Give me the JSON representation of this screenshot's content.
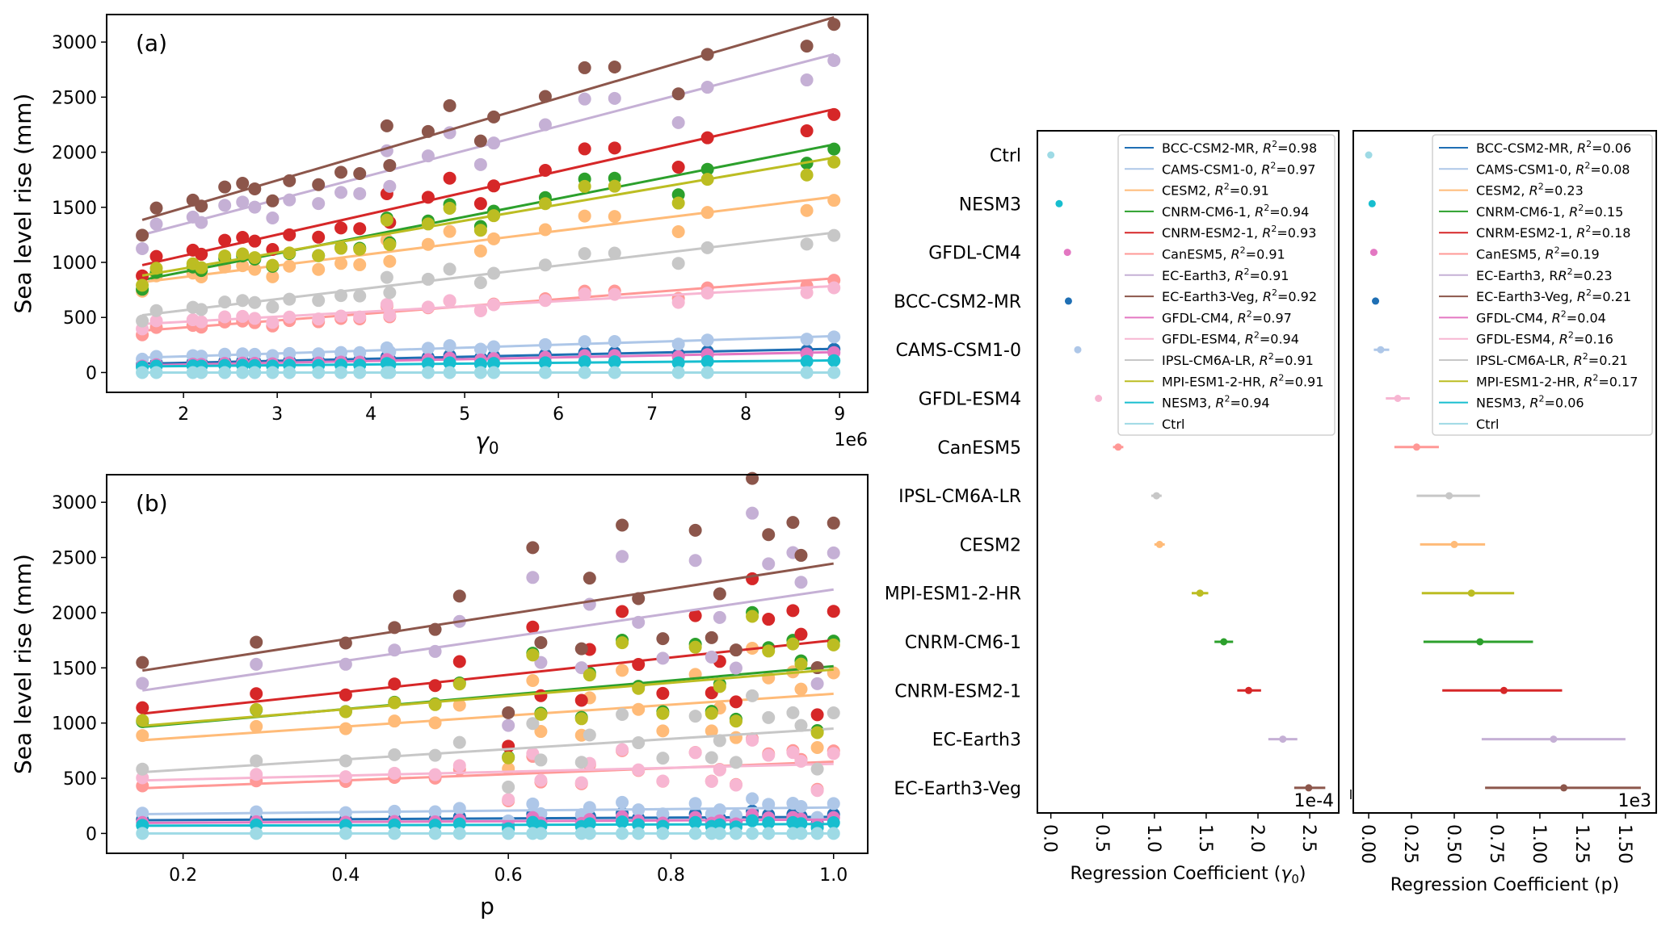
{
  "chart_data": [
    {
      "id": "a",
      "type": "scatter",
      "panel_label": "(a)",
      "xlabel": "γ0",
      "ylabel": "Sea level rise (mm)",
      "x_offset_text": "1e6",
      "xlim": [
        1.18,
        9.3
      ],
      "ylim": [
        -180,
        3250
      ],
      "xticks": [
        2,
        3,
        4,
        5,
        6,
        7,
        8,
        9
      ],
      "yticks": [
        0,
        500,
        1000,
        1500,
        2000,
        2500,
        3000
      ],
      "x": [
        1.56,
        1.71,
        2.1,
        2.19,
        2.44,
        2.63,
        2.76,
        2.95,
        3.13,
        3.44,
        3.68,
        3.88,
        4.17,
        4.2,
        4.61,
        4.84,
        5.17,
        5.31,
        5.86,
        6.28,
        6.6,
        7.28,
        7.59,
        8.65,
        8.94
      ],
      "relative_residual": [
        0.9,
        1.05,
        1.03,
        0.98,
        1.05,
        1.04,
        0.99,
        0.9,
        0.98,
        0.92,
        0.95,
        0.92,
        1.1,
        0.92,
        1.02,
        1.1,
        0.92,
        1.0,
        1.02,
        1.08,
        1.05,
        0.9,
        1.0,
        0.94,
        0.98
      ],
      "series": [
        {
          "name": "BCC-CSM2-MR",
          "color": "#1f6fb4",
          "fit": [
            80,
            215
          ]
        },
        {
          "name": "CAMS-CSM1-0",
          "color": "#aec7e8",
          "fit": [
            135,
            330
          ]
        },
        {
          "name": "CESM2",
          "color": "#ffbb78",
          "fit": [
            820,
            1595
          ]
        },
        {
          "name": "CNRM-CM6-1",
          "color": "#2ca02c",
          "fit": [
            840,
            2070
          ]
        },
        {
          "name": "CNRM-ESM2-1",
          "color": "#d62728",
          "fit": [
            975,
            2390
          ]
        },
        {
          "name": "CanESM5",
          "color": "#ff9896",
          "fit": [
            380,
            855
          ]
        },
        {
          "name": "EC-Earth3",
          "color": "#c5b0d5",
          "fit": [
            1250,
            2890
          ]
        },
        {
          "name": "EC-Earth3-Veg",
          "color": "#8c564b",
          "fit": [
            1385,
            3225
          ]
        },
        {
          "name": "GFDL-CM4",
          "color": "#e377c2",
          "fit": [
            65,
            185
          ]
        },
        {
          "name": "GFDL-ESM4",
          "color": "#f7b6d2",
          "fit": [
            440,
            785
          ]
        },
        {
          "name": "IPSL-CM6A-LR",
          "color": "#c7c7c7",
          "fit": [
            520,
            1270
          ]
        },
        {
          "name": "MPI-ESM1-2-HR",
          "color": "#bcbd22",
          "fit": [
            880,
            1950
          ]
        },
        {
          "name": "NESM3",
          "color": "#17becf",
          "fit": [
            55,
            110
          ]
        },
        {
          "name": "Ctrl",
          "color": "#9edae5",
          "fit": [
            0,
            0
          ]
        }
      ]
    },
    {
      "id": "b",
      "type": "scatter",
      "panel_label": "(b)",
      "xlabel": "p",
      "ylabel": "Sea level rise (mm)",
      "xlim": [
        0.106,
        1.042
      ],
      "ylim": [
        -180,
        3250
      ],
      "xticks": [
        0.2,
        0.4,
        0.6,
        0.8,
        1.0
      ],
      "yticks": [
        0,
        500,
        1000,
        1500,
        2000,
        2500,
        3000
      ],
      "x": [
        0.15,
        0.29,
        0.4,
        0.46,
        0.51,
        0.54,
        0.6,
        0.63,
        0.64,
        0.69,
        0.7,
        0.74,
        0.76,
        0.79,
        0.83,
        0.85,
        0.86,
        0.88,
        0.9,
        0.92,
        0.95,
        0.96,
        0.98,
        1.0
      ],
      "relative_residual": [
        1.05,
        1.06,
        0.98,
        1.02,
        0.98,
        1.12,
        0.55,
        1.28,
        0.85,
        0.8,
        1.1,
        1.3,
        0.98,
        0.8,
        1.22,
        0.78,
        0.95,
        0.72,
        1.38,
        1.15,
        1.18,
        1.05,
        0.62,
        1.15
      ],
      "series": [
        {
          "name": "BCC-CSM2-MR",
          "color": "#1f6fb4",
          "fit": [
            120,
            150
          ]
        },
        {
          "name": "CAMS-CSM1-0",
          "color": "#aec7e8",
          "fit": [
            175,
            235
          ]
        },
        {
          "name": "CESM2",
          "color": "#ffbb78",
          "fit": [
            845,
            1265
          ]
        },
        {
          "name": "CNRM-CM6-1",
          "color": "#2ca02c",
          "fit": [
            965,
            1515
          ]
        },
        {
          "name": "CNRM-ESM2-1",
          "color": "#d62728",
          "fit": [
            1085,
            1750
          ]
        },
        {
          "name": "CanESM5",
          "color": "#ff9896",
          "fit": [
            410,
            650
          ]
        },
        {
          "name": "EC-Earth3",
          "color": "#c5b0d5",
          "fit": [
            1295,
            2210
          ]
        },
        {
          "name": "EC-Earth3-Veg",
          "color": "#8c564b",
          "fit": [
            1475,
            2445
          ]
        },
        {
          "name": "GFDL-CM4",
          "color": "#e377c2",
          "fit": [
            95,
            125
          ]
        },
        {
          "name": "GFDL-ESM4",
          "color": "#f7b6d2",
          "fit": [
            480,
            630
          ]
        },
        {
          "name": "IPSL-CM6A-LR",
          "color": "#c7c7c7",
          "fit": [
            555,
            950
          ]
        },
        {
          "name": "MPI-ESM1-2-HR",
          "color": "#bcbd22",
          "fit": [
            975,
            1485
          ]
        },
        {
          "name": "NESM3",
          "color": "#17becf",
          "fit": [
            70,
            85
          ]
        },
        {
          "name": "Ctrl",
          "color": "#9edae5",
          "fit": [
            0,
            0
          ]
        }
      ]
    },
    {
      "id": "c",
      "type": "errorbar",
      "xlabel": "Regression Coefficient (γ0)",
      "x_offset_text": "1e-4",
      "xlim": [
        -0.13,
        2.78
      ],
      "xticks": [
        "0.0",
        "0.5",
        "1.0",
        "1.5",
        "2.0",
        "2.5"
      ],
      "categories": [
        "Ctrl",
        "NESM3",
        "GFDL-CM4",
        "BCC-CSM2-MR",
        "CAMS-CSM1-0",
        "GFDL-ESM4",
        "CanESM5",
        "IPSL-CM6A-LR",
        "CESM2",
        "MPI-ESM1-2-HR",
        "CNRM-CM6-1",
        "CNRM-ESM2-1",
        "EC-Earth3",
        "EC-Earth3-Veg"
      ],
      "colors": [
        "#9edae5",
        "#17becf",
        "#e377c2",
        "#1f6fb4",
        "#aec7e8",
        "#f7b6d2",
        "#ff9896",
        "#c7c7c7",
        "#ffbb78",
        "#bcbd22",
        "#2ca02c",
        "#d62728",
        "#c5b0d5",
        "#8c564b"
      ],
      "values": [
        0.0,
        0.08,
        0.16,
        0.17,
        0.26,
        0.46,
        0.65,
        1.02,
        1.05,
        1.44,
        1.67,
        1.91,
        2.24,
        2.49
      ],
      "err_low": [
        0.0,
        0.07,
        0.15,
        0.16,
        0.25,
        0.44,
        0.6,
        0.97,
        1.0,
        1.36,
        1.58,
        1.8,
        2.1,
        2.35
      ],
      "err_high": [
        0.0,
        0.09,
        0.17,
        0.18,
        0.27,
        0.48,
        0.7,
        1.07,
        1.1,
        1.52,
        1.76,
        2.03,
        2.38,
        2.65
      ],
      "legend": [
        {
          "label": "BCC-CSM2-MR, ",
          "r2": "0.98",
          "color": "#1f6fb4"
        },
        {
          "label": "CAMS-CSM1-0, ",
          "r2": "0.97",
          "color": "#aec7e8"
        },
        {
          "label": "CESM2, ",
          "r2": "0.91",
          "color": "#ffbb78"
        },
        {
          "label": "CNRM-CM6-1, ",
          "r2": "0.94",
          "color": "#2ca02c"
        },
        {
          "label": "CNRM-ESM2-1, ",
          "r2": "0.93",
          "color": "#d62728"
        },
        {
          "label": "CanESM5, ",
          "r2": "0.91",
          "color": "#ff9896"
        },
        {
          "label": "EC-Earth3, ",
          "r2": "0.91",
          "color": "#c5b0d5"
        },
        {
          "label": "EC-Earth3-Veg, ",
          "r2": "0.92",
          "color": "#8c564b"
        },
        {
          "label": "GFDL-CM4, ",
          "r2": "0.97",
          "color": "#e377c2"
        },
        {
          "label": "GFDL-ESM4, ",
          "r2": "0.94",
          "color": "#f7b6d2"
        },
        {
          "label": "IPSL-CM6A-LR, ",
          "r2": "0.91",
          "color": "#c7c7c7"
        },
        {
          "label": "MPI-ESM1-2-HR, ",
          "r2": "0.91",
          "color": "#bcbd22"
        },
        {
          "label": "NESM3, ",
          "r2": "0.94",
          "color": "#17becf"
        },
        {
          "label": "Ctrl",
          "r2": null,
          "color": "#9edae5"
        }
      ]
    },
    {
      "id": "d",
      "type": "errorbar",
      "xlabel": "Regression Coefficient (p)",
      "x_offset_text": "1e3",
      "xlim": [
        -0.09,
        1.68
      ],
      "xticks": [
        "0.00",
        "0.25",
        "0.50",
        "0.75",
        "1.00",
        "1.25",
        "1.50"
      ],
      "categories": [
        "Ctrl",
        "NESM3",
        "GFDL-CM4",
        "BCC-CSM2-MR",
        "CAMS-CSM1-0",
        "GFDL-ESM4",
        "CanESM5",
        "IPSL-CM6A-LR",
        "CESM2",
        "MPI-ESM1-2-HR",
        "CNRM-CM6-1",
        "CNRM-ESM2-1",
        "EC-Earth3",
        "EC-Earth3-Veg"
      ],
      "colors": [
        "#9edae5",
        "#17becf",
        "#e377c2",
        "#1f6fb4",
        "#aec7e8",
        "#f7b6d2",
        "#ff9896",
        "#c7c7c7",
        "#ffbb78",
        "#bcbd22",
        "#2ca02c",
        "#d62728",
        "#c5b0d5",
        "#8c564b"
      ],
      "values": [
        0.0,
        0.02,
        0.03,
        0.04,
        0.07,
        0.17,
        0.28,
        0.47,
        0.5,
        0.6,
        0.65,
        0.79,
        1.08,
        1.14
      ],
      "err_low": [
        0.0,
        0.01,
        0.01,
        0.02,
        0.03,
        0.1,
        0.15,
        0.28,
        0.3,
        0.31,
        0.32,
        0.43,
        0.66,
        0.68
      ],
      "err_high": [
        0.0,
        0.03,
        0.05,
        0.06,
        0.12,
        0.24,
        0.41,
        0.65,
        0.68,
        0.85,
        0.96,
        1.13,
        1.5,
        1.59
      ],
      "legend": [
        {
          "label": "BCC-CSM2-MR, ",
          "r2": "0.06",
          "color": "#1f6fb4"
        },
        {
          "label": "CAMS-CSM1-0, ",
          "r2": "0.08",
          "color": "#aec7e8"
        },
        {
          "label": "CESM2, ",
          "r2": "0.23",
          "color": "#ffbb78"
        },
        {
          "label": "CNRM-CM6-1, ",
          "r2": "0.15",
          "color": "#2ca02c"
        },
        {
          "label": "CNRM-ESM2-1, ",
          "r2": "0.18",
          "color": "#d62728"
        },
        {
          "label": "CanESM5, ",
          "r2": "0.19",
          "color": "#ff9896"
        },
        {
          "label": "EC-Earth3, R",
          "r2": "0.23",
          "color": "#c5b0d5"
        },
        {
          "label": "EC-Earth3-Veg, ",
          "r2": "0.21",
          "color": "#8c564b"
        },
        {
          "label": "GFDL-CM4, ",
          "r2": "0.04",
          "color": "#e377c2"
        },
        {
          "label": "GFDL-ESM4, ",
          "r2": "0.16",
          "color": "#f7b6d2"
        },
        {
          "label": "IPSL-CM6A-LR, ",
          "r2": "0.21",
          "color": "#c7c7c7"
        },
        {
          "label": "MPI-ESM1-2-HR, ",
          "r2": "0.17",
          "color": "#bcbd22"
        },
        {
          "label": "NESM3, ",
          "r2": "0.06",
          "color": "#17becf"
        },
        {
          "label": "Ctrl",
          "r2": null,
          "color": "#9edae5"
        }
      ]
    }
  ]
}
